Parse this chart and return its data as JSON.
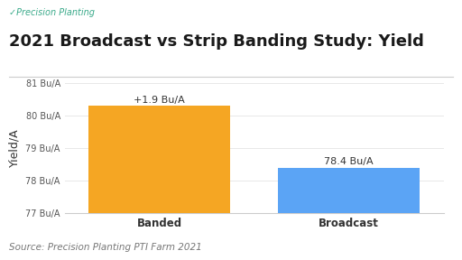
{
  "title": "2021 Broadcast vs Strip Banding Study: Yield",
  "logo_text": "✓Precision Planting",
  "categories": [
    "Banded",
    "Broadcast"
  ],
  "values": [
    80.3,
    78.4
  ],
  "bar_colors": [
    "#F5A623",
    "#5BA4F5"
  ],
  "bar_annotations": [
    "+1.9 Bu/A",
    "78.4 Bu/A"
  ],
  "ylabel": "Yield/A",
  "ylim": [
    77,
    81
  ],
  "yticks": [
    77,
    78,
    79,
    80,
    81
  ],
  "ytick_labels": [
    "77 Bu/A",
    "78 Bu/A",
    "79 Bu/A",
    "80 Bu/A",
    "81 Bu/A"
  ],
  "source_text": "Source: Precision Planting PTI Farm 2021",
  "bg_color": "#FFFFFF",
  "grid_color": "#E8E8E8",
  "title_fontsize": 13,
  "logo_color": "#3AAA8A",
  "annotation_fontsize": 8,
  "source_fontsize": 7.5,
  "bar_width": 0.75,
  "xlim": [
    -0.5,
    1.5
  ]
}
